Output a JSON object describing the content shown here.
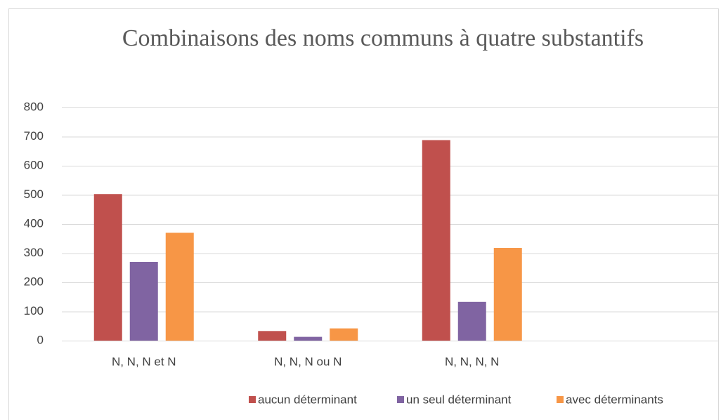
{
  "chart_data": {
    "type": "bar",
    "title": "Combinaisons des noms communs à quatre substantifs",
    "categories": [
      "N, N, N et N",
      "N, N, N ou N",
      "N, N, N, N",
      null
    ],
    "series": [
      {
        "name": "aucun déterminant",
        "color": "#c0504d",
        "values": [
          503,
          33,
          688,
          null
        ]
      },
      {
        "name": "un seul déterminant",
        "color": "#8064a2",
        "values": [
          270,
          13,
          133,
          null
        ]
      },
      {
        "name": "avec déterminants",
        "color": "#f79646",
        "values": [
          370,
          42,
          318,
          null
        ]
      }
    ],
    "ylim": [
      0,
      800
    ],
    "yticks": [
      0,
      100,
      200,
      300,
      400,
      500,
      600,
      700,
      800
    ],
    "grid": true,
    "legend": "bottom"
  }
}
